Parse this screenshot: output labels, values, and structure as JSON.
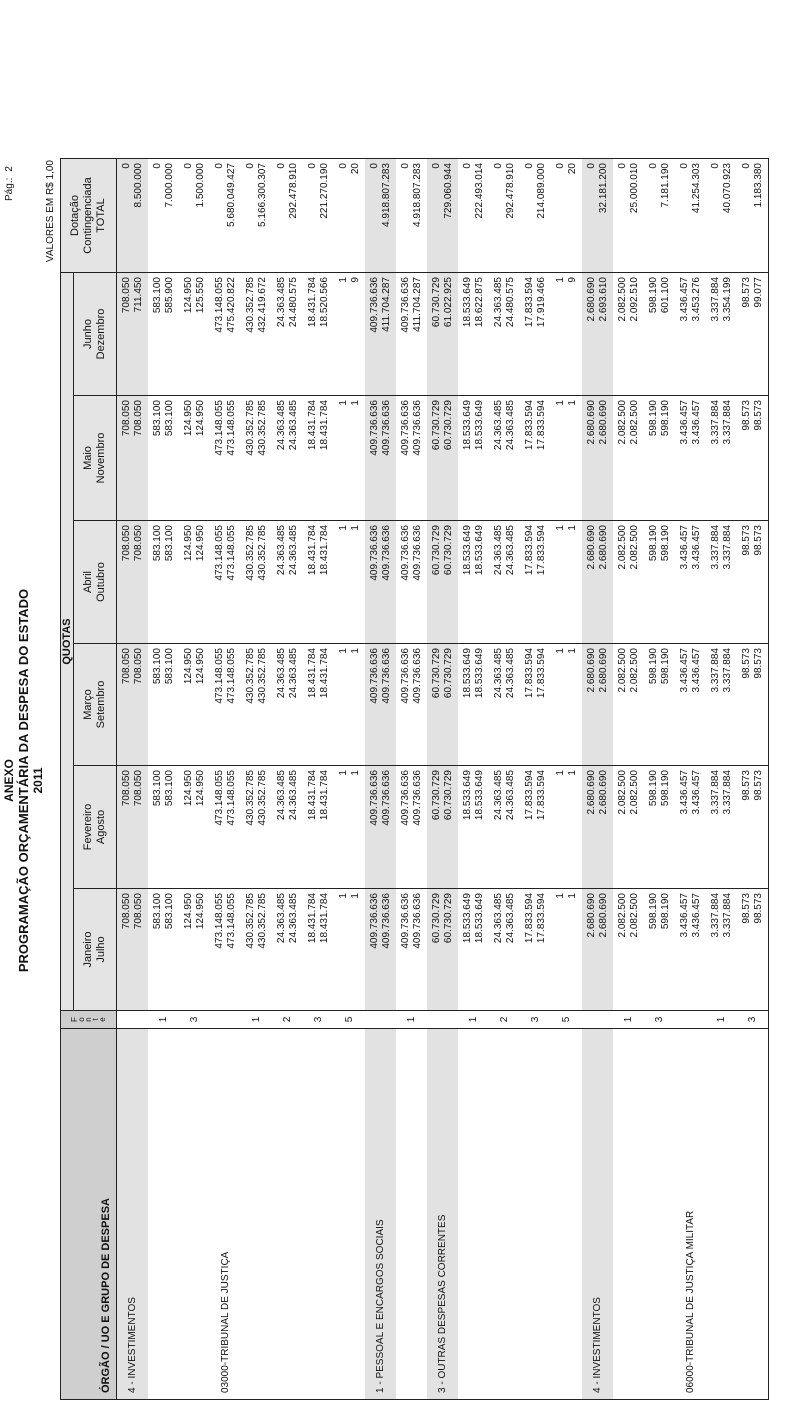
{
  "header": {
    "annex": "ANEXO",
    "title": "PROGRAMAÇÃO ORÇAMENTÁRIA DA DESPESA DO ESTADO",
    "year": "2011",
    "page_label": "Pág.:",
    "page": "2",
    "units": "VALORES EM R$ 1,00"
  },
  "table": {
    "columns": {
      "organ": "ÓRGÃO / UO  E GRUPO DE DESPESA",
      "source": "Fonte",
      "quotas": "QUOTAS",
      "months": [
        [
          "Janeiro",
          "Julho"
        ],
        [
          "Fevereiro",
          "Agosto"
        ],
        [
          "Março",
          "Setembro"
        ],
        [
          "Abril",
          "Outubro"
        ],
        [
          "Maio",
          "Novembro"
        ],
        [
          "Junho",
          "Dezembro"
        ]
      ],
      "total": [
        "Dotação Contingenciada",
        "TOTAL"
      ]
    },
    "rows": [
      {
        "label": "4 - INVESTIMENTOS",
        "shaded": true,
        "months": [
          [
            "708.050",
            "708.050"
          ],
          [
            "708.050",
            "708.050"
          ],
          [
            "708.050",
            "708.050"
          ],
          [
            "708.050",
            "708.050"
          ],
          [
            "708.050",
            "708.050"
          ],
          [
            "708.050",
            "711.450"
          ]
        ],
        "total": [
          "0",
          "8.500.000"
        ]
      },
      {
        "source": "1",
        "months": [
          [
            "583.100",
            "583.100"
          ],
          [
            "583.100",
            "583.100"
          ],
          [
            "583.100",
            "583.100"
          ],
          [
            "583.100",
            "583.100"
          ],
          [
            "583.100",
            "583.100"
          ],
          [
            "583.100",
            "585.900"
          ]
        ],
        "total": [
          "0",
          "7.000.000"
        ]
      },
      {
        "source": "3",
        "months": [
          [
            "124.950",
            "124.950"
          ],
          [
            "124.950",
            "124.950"
          ],
          [
            "124.950",
            "124.950"
          ],
          [
            "124.950",
            "124.950"
          ],
          [
            "124.950",
            "124.950"
          ],
          [
            "124.950",
            "125.550"
          ]
        ],
        "total": [
          "0",
          "1.500.000"
        ]
      },
      {
        "label": "03000-TRIBUNAL DE JUSTIÇA",
        "months": [
          [
            "473.148.055",
            "473.148.055"
          ],
          [
            "473.148.055",
            "473.148.055"
          ],
          [
            "473.148.055",
            "473.148.055"
          ],
          [
            "473.148.055",
            "473.148.055"
          ],
          [
            "473.148.055",
            "473.148.055"
          ],
          [
            "473.148.055",
            "475.420.822"
          ]
        ],
        "total": [
          "0",
          "5.680.049.427"
        ]
      },
      {
        "source": "1",
        "months": [
          [
            "430.352.785",
            "430.352.785"
          ],
          [
            "430.352.785",
            "430.352.785"
          ],
          [
            "430.352.785",
            "430.352.785"
          ],
          [
            "430.352.785",
            "430.352.785"
          ],
          [
            "430.352.785",
            "430.352.785"
          ],
          [
            "430.352.785",
            "432.419.672"
          ]
        ],
        "total": [
          "0",
          "5.166.300.307"
        ]
      },
      {
        "source": "2",
        "months": [
          [
            "24.363.485",
            "24.363.485"
          ],
          [
            "24.363.485",
            "24.363.485"
          ],
          [
            "24.363.485",
            "24.363.485"
          ],
          [
            "24.363.485",
            "24.363.485"
          ],
          [
            "24.363.485",
            "24.363.485"
          ],
          [
            "24.363.485",
            "24.480.575"
          ]
        ],
        "total": [
          "0",
          "292.478.910"
        ]
      },
      {
        "source": "3",
        "months": [
          [
            "18.431.784",
            "18.431.784"
          ],
          [
            "18.431.784",
            "18.431.784"
          ],
          [
            "18.431.784",
            "18.431.784"
          ],
          [
            "18.431.784",
            "18.431.784"
          ],
          [
            "18.431.784",
            "18.431.784"
          ],
          [
            "18.431.784",
            "18.520.566"
          ]
        ],
        "total": [
          "0",
          "221.270.190"
        ]
      },
      {
        "source": "5",
        "months": [
          [
            "1",
            "1"
          ],
          [
            "1",
            "1"
          ],
          [
            "1",
            "1"
          ],
          [
            "1",
            "1"
          ],
          [
            "1",
            "1"
          ],
          [
            "1",
            "9"
          ]
        ],
        "total": [
          "0",
          "20"
        ]
      },
      {
        "label": "1 - PESSOAL E ENCARGOS SOCIAIS",
        "shaded": true,
        "months": [
          [
            "409.736.636",
            "409.736.636"
          ],
          [
            "409.736.636",
            "409.736.636"
          ],
          [
            "409.736.636",
            "409.736.636"
          ],
          [
            "409.736.636",
            "409.736.636"
          ],
          [
            "409.736.636",
            "409.736.636"
          ],
          [
            "409.736.636",
            "411.704.287"
          ]
        ],
        "total": [
          "0",
          "4.918.807.283"
        ]
      },
      {
        "source": "1",
        "months": [
          [
            "409.736.636",
            "409.736.636"
          ],
          [
            "409.736.636",
            "409.736.636"
          ],
          [
            "409.736.636",
            "409.736.636"
          ],
          [
            "409.736.636",
            "409.736.636"
          ],
          [
            "409.736.636",
            "409.736.636"
          ],
          [
            "409.736.636",
            "411.704.287"
          ]
        ],
        "total": [
          "0",
          "4.918.807.283"
        ]
      },
      {
        "label": "3 - OUTRAS DESPESAS CORRENTES",
        "shaded": true,
        "months": [
          [
            "60.730.729",
            "60.730.729"
          ],
          [
            "60.730.729",
            "60.730.729"
          ],
          [
            "60.730.729",
            "60.730.729"
          ],
          [
            "60.730.729",
            "60.730.729"
          ],
          [
            "60.730.729",
            "60.730.729"
          ],
          [
            "60.730.729",
            "61.022.925"
          ]
        ],
        "total": [
          "0",
          "729.060.944"
        ]
      },
      {
        "source": "1",
        "months": [
          [
            "18.533.649",
            "18.533.649"
          ],
          [
            "18.533.649",
            "18.533.649"
          ],
          [
            "18.533.649",
            "18.533.649"
          ],
          [
            "18.533.649",
            "18.533.649"
          ],
          [
            "18.533.649",
            "18.533.649"
          ],
          [
            "18.533.649",
            "18.622.875"
          ]
        ],
        "total": [
          "0",
          "222.493.014"
        ]
      },
      {
        "source": "2",
        "months": [
          [
            "24.363.485",
            "24.363.485"
          ],
          [
            "24.363.485",
            "24.363.485"
          ],
          [
            "24.363.485",
            "24.363.485"
          ],
          [
            "24.363.485",
            "24.363.485"
          ],
          [
            "24.363.485",
            "24.363.485"
          ],
          [
            "24.363.485",
            "24.480.575"
          ]
        ],
        "total": [
          "0",
          "292.478.910"
        ]
      },
      {
        "source": "3",
        "months": [
          [
            "17.833.594",
            "17.833.594"
          ],
          [
            "17.833.594",
            "17.833.594"
          ],
          [
            "17.833.594",
            "17.833.594"
          ],
          [
            "17.833.594",
            "17.833.594"
          ],
          [
            "17.833.594",
            "17.833.594"
          ],
          [
            "17.833.594",
            "17.919.466"
          ]
        ],
        "total": [
          "0",
          "214.089.000"
        ]
      },
      {
        "source": "5",
        "months": [
          [
            "1",
            "1"
          ],
          [
            "1",
            "1"
          ],
          [
            "1",
            "1"
          ],
          [
            "1",
            "1"
          ],
          [
            "1",
            "1"
          ],
          [
            "1",
            "9"
          ]
        ],
        "total": [
          "0",
          "20"
        ]
      },
      {
        "label": "4 - INVESTIMENTOS",
        "shaded": true,
        "months": [
          [
            "2.680.690",
            "2.680.690"
          ],
          [
            "2.680.690",
            "2.680.690"
          ],
          [
            "2.680.690",
            "2.680.690"
          ],
          [
            "2.680.690",
            "2.680.690"
          ],
          [
            "2.680.690",
            "2.680.690"
          ],
          [
            "2.680.690",
            "2.693.610"
          ]
        ],
        "total": [
          "0",
          "32.181.200"
        ]
      },
      {
        "source": "1",
        "months": [
          [
            "2.082.500",
            "2.082.500"
          ],
          [
            "2.082.500",
            "2.082.500"
          ],
          [
            "2.082.500",
            "2.082.500"
          ],
          [
            "2.082.500",
            "2.082.500"
          ],
          [
            "2.082.500",
            "2.082.500"
          ],
          [
            "2.082.500",
            "2.092.510"
          ]
        ],
        "total": [
          "0",
          "25.000.010"
        ]
      },
      {
        "source": "3",
        "months": [
          [
            "598.190",
            "598.190"
          ],
          [
            "598.190",
            "598.190"
          ],
          [
            "598.190",
            "598.190"
          ],
          [
            "598.190",
            "598.190"
          ],
          [
            "598.190",
            "598.190"
          ],
          [
            "598.190",
            "601.100"
          ]
        ],
        "total": [
          "0",
          "7.181.190"
        ]
      },
      {
        "label": "06000-TRIBUNAL DE JUSTIÇA MILITAR",
        "months": [
          [
            "3.436.457",
            "3.436.457"
          ],
          [
            "3.436.457",
            "3.436.457"
          ],
          [
            "3.436.457",
            "3.436.457"
          ],
          [
            "3.436.457",
            "3.436.457"
          ],
          [
            "3.436.457",
            "3.436.457"
          ],
          [
            "3.436.457",
            "3.453.276"
          ]
        ],
        "total": [
          "0",
          "41.254.303"
        ]
      },
      {
        "source": "1",
        "months": [
          [
            "3.337.884",
            "3.337.884"
          ],
          [
            "3.337.884",
            "3.337.884"
          ],
          [
            "3.337.884",
            "3.337.884"
          ],
          [
            "3.337.884",
            "3.337.884"
          ],
          [
            "3.337.884",
            "3.337.884"
          ],
          [
            "3.337.884",
            "3.354.199"
          ]
        ],
        "total": [
          "0",
          "40.070.923"
        ]
      },
      {
        "source": "3",
        "months": [
          [
            "98.573",
            "98.573"
          ],
          [
            "98.573",
            "98.573"
          ],
          [
            "98.573",
            "98.573"
          ],
          [
            "98.573",
            "98.573"
          ],
          [
            "98.573",
            "98.573"
          ],
          [
            "98.573",
            "99.077"
          ]
        ],
        "total": [
          "0",
          "1.183.380"
        ]
      }
    ]
  }
}
